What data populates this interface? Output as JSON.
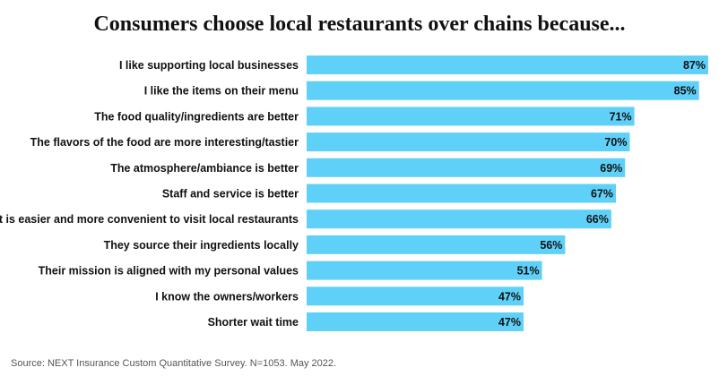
{
  "chart_data": {
    "type": "bar",
    "orientation": "horizontal",
    "title": "Consumers choose local restaurants over chains because...",
    "categories": [
      "I like supporting local businesses",
      "I like the items on their menu",
      "The food quality/ingredients are better",
      "The flavors of the food are more interesting/tastier",
      "The atmosphere/ambiance is better",
      "Staff and service is better",
      "It is easier and more convenient to visit local restaurants",
      "They source their ingredients locally",
      "Their mission is aligned with my personal values",
      "I know the owners/workers",
      "Shorter wait time"
    ],
    "values": [
      87,
      85,
      71,
      70,
      69,
      67,
      66,
      56,
      51,
      47,
      47
    ],
    "value_labels": [
      "87%",
      "85%",
      "71%",
      "70%",
      "69%",
      "67%",
      "66%",
      "56%",
      "51%",
      "47%",
      "47%"
    ],
    "unit": "%",
    "xlim": [
      0,
      87
    ],
    "xlabel": "",
    "ylabel": "",
    "grid": false,
    "legend": "none",
    "bar_color": "#5fd0f8",
    "source": "Source: NEXT Insurance Custom Quantitative Survey. N=1053. May 2022."
  }
}
